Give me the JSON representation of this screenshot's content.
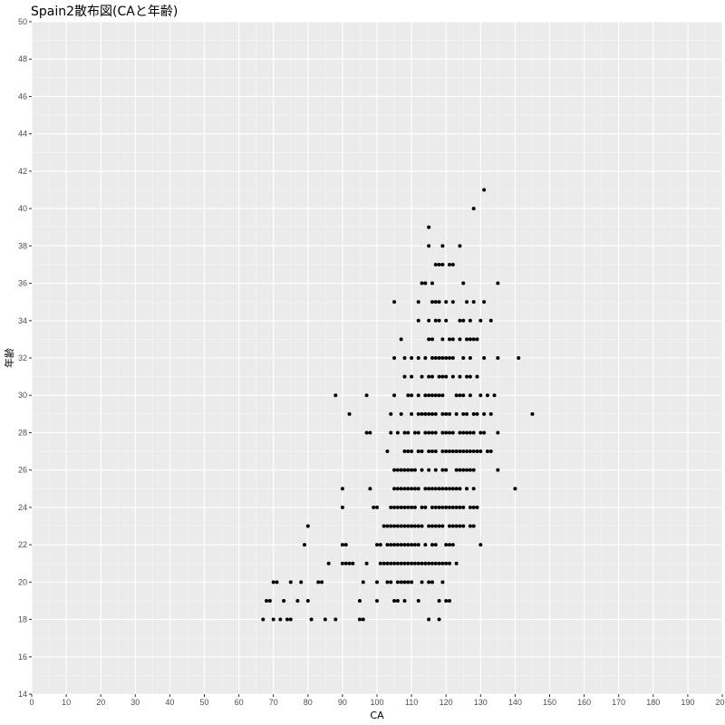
{
  "chart_data": {
    "type": "scatter",
    "title": "Spain2散布図(CAと年齢)",
    "xlabel": "CA",
    "ylabel": "年齢",
    "xlim": [
      0,
      200
    ],
    "ylim": [
      14,
      50
    ],
    "x_ticks": [
      0,
      10,
      20,
      30,
      40,
      50,
      60,
      70,
      80,
      90,
      100,
      110,
      120,
      130,
      140,
      150,
      160,
      170,
      180,
      190,
      200
    ],
    "y_ticks": [
      14,
      16,
      18,
      20,
      22,
      24,
      26,
      28,
      30,
      32,
      34,
      36,
      38,
      40,
      42,
      44,
      46,
      48,
      50
    ],
    "grid": true,
    "legend": "none",
    "colors": {
      "panel": "#ebebeb",
      "grid_major": "#ffffff",
      "point": "#000000"
    },
    "points": [
      [
        67,
        18
      ],
      [
        70,
        18
      ],
      [
        72,
        18
      ],
      [
        74,
        18
      ],
      [
        75,
        18
      ],
      [
        81,
        18
      ],
      [
        85,
        18
      ],
      [
        88,
        18
      ],
      [
        95,
        18
      ],
      [
        96,
        18
      ],
      [
        115,
        18
      ],
      [
        118,
        18
      ],
      [
        68,
        19
      ],
      [
        69,
        19
      ],
      [
        73,
        19
      ],
      [
        77,
        19
      ],
      [
        80,
        19
      ],
      [
        95,
        19
      ],
      [
        100,
        19
      ],
      [
        105,
        19
      ],
      [
        106,
        19
      ],
      [
        108,
        19
      ],
      [
        112,
        19
      ],
      [
        118,
        19
      ],
      [
        120,
        19
      ],
      [
        121,
        19
      ],
      [
        70,
        20
      ],
      [
        71,
        20
      ],
      [
        75,
        20
      ],
      [
        78,
        20
      ],
      [
        83,
        20
      ],
      [
        84,
        20
      ],
      [
        96,
        20
      ],
      [
        100,
        20
      ],
      [
        103,
        20
      ],
      [
        104,
        20
      ],
      [
        106,
        20
      ],
      [
        107,
        20
      ],
      [
        108,
        20
      ],
      [
        109,
        20
      ],
      [
        110,
        20
      ],
      [
        113,
        20
      ],
      [
        115,
        20
      ],
      [
        116,
        20
      ],
      [
        119,
        20
      ],
      [
        86,
        21
      ],
      [
        90,
        21
      ],
      [
        91,
        21
      ],
      [
        92,
        21
      ],
      [
        93,
        21
      ],
      [
        97,
        21
      ],
      [
        101,
        21
      ],
      [
        102,
        21
      ],
      [
        103,
        21
      ],
      [
        104,
        21
      ],
      [
        105,
        21
      ],
      [
        106,
        21
      ],
      [
        107,
        21
      ],
      [
        108,
        21
      ],
      [
        109,
        21
      ],
      [
        110,
        21
      ],
      [
        111,
        21
      ],
      [
        112,
        21
      ],
      [
        113,
        21
      ],
      [
        114,
        21
      ],
      [
        115,
        21
      ],
      [
        116,
        21
      ],
      [
        117,
        21
      ],
      [
        118,
        21
      ],
      [
        119,
        21
      ],
      [
        120,
        21
      ],
      [
        121,
        21
      ],
      [
        123,
        21
      ],
      [
        79,
        22
      ],
      [
        90,
        22
      ],
      [
        91,
        22
      ],
      [
        100,
        22
      ],
      [
        101,
        22
      ],
      [
        103,
        22
      ],
      [
        104,
        22
      ],
      [
        105,
        22
      ],
      [
        106,
        22
      ],
      [
        107,
        22
      ],
      [
        108,
        22
      ],
      [
        109,
        22
      ],
      [
        110,
        22
      ],
      [
        111,
        22
      ],
      [
        112,
        22
      ],
      [
        114,
        22
      ],
      [
        116,
        22
      ],
      [
        117,
        22
      ],
      [
        120,
        22
      ],
      [
        121,
        22
      ],
      [
        122,
        22
      ],
      [
        130,
        22
      ],
      [
        80,
        23
      ],
      [
        102,
        23
      ],
      [
        103,
        23
      ],
      [
        104,
        23
      ],
      [
        105,
        23
      ],
      [
        106,
        23
      ],
      [
        107,
        23
      ],
      [
        108,
        23
      ],
      [
        109,
        23
      ],
      [
        110,
        23
      ],
      [
        111,
        23
      ],
      [
        112,
        23
      ],
      [
        113,
        23
      ],
      [
        115,
        23
      ],
      [
        116,
        23
      ],
      [
        117,
        23
      ],
      [
        118,
        23
      ],
      [
        119,
        23
      ],
      [
        121,
        23
      ],
      [
        122,
        23
      ],
      [
        123,
        23
      ],
      [
        124,
        23
      ],
      [
        125,
        23
      ],
      [
        127,
        23
      ],
      [
        128,
        23
      ],
      [
        90,
        24
      ],
      [
        99,
        24
      ],
      [
        100,
        24
      ],
      [
        104,
        24
      ],
      [
        105,
        24
      ],
      [
        106,
        24
      ],
      [
        107,
        24
      ],
      [
        108,
        24
      ],
      [
        109,
        24
      ],
      [
        110,
        24
      ],
      [
        111,
        24
      ],
      [
        113,
        24
      ],
      [
        114,
        24
      ],
      [
        116,
        24
      ],
      [
        117,
        24
      ],
      [
        118,
        24
      ],
      [
        119,
        24
      ],
      [
        120,
        24
      ],
      [
        121,
        24
      ],
      [
        122,
        24
      ],
      [
        123,
        24
      ],
      [
        124,
        24
      ],
      [
        125,
        24
      ],
      [
        127,
        24
      ],
      [
        128,
        24
      ],
      [
        129,
        24
      ],
      [
        90,
        25
      ],
      [
        98,
        25
      ],
      [
        105,
        25
      ],
      [
        106,
        25
      ],
      [
        107,
        25
      ],
      [
        108,
        25
      ],
      [
        109,
        25
      ],
      [
        110,
        25
      ],
      [
        111,
        25
      ],
      [
        112,
        25
      ],
      [
        114,
        25
      ],
      [
        115,
        25
      ],
      [
        116,
        25
      ],
      [
        117,
        25
      ],
      [
        118,
        25
      ],
      [
        119,
        25
      ],
      [
        120,
        25
      ],
      [
        121,
        25
      ],
      [
        122,
        25
      ],
      [
        123,
        25
      ],
      [
        124,
        25
      ],
      [
        126,
        25
      ],
      [
        128,
        25
      ],
      [
        140,
        25
      ],
      [
        105,
        26
      ],
      [
        106,
        26
      ],
      [
        107,
        26
      ],
      [
        108,
        26
      ],
      [
        109,
        26
      ],
      [
        110,
        26
      ],
      [
        111,
        26
      ],
      [
        113,
        26
      ],
      [
        115,
        26
      ],
      [
        117,
        26
      ],
      [
        119,
        26
      ],
      [
        120,
        26
      ],
      [
        123,
        26
      ],
      [
        124,
        26
      ],
      [
        125,
        26
      ],
      [
        126,
        26
      ],
      [
        127,
        26
      ],
      [
        128,
        26
      ],
      [
        135,
        26
      ],
      [
        103,
        27
      ],
      [
        108,
        27
      ],
      [
        109,
        27
      ],
      [
        110,
        27
      ],
      [
        112,
        27
      ],
      [
        113,
        27
      ],
      [
        115,
        27
      ],
      [
        116,
        27
      ],
      [
        117,
        27
      ],
      [
        119,
        27
      ],
      [
        120,
        27
      ],
      [
        121,
        27
      ],
      [
        122,
        27
      ],
      [
        123,
        27
      ],
      [
        124,
        27
      ],
      [
        125,
        27
      ],
      [
        126,
        27
      ],
      [
        127,
        27
      ],
      [
        128,
        27
      ],
      [
        129,
        27
      ],
      [
        130,
        27
      ],
      [
        132,
        27
      ],
      [
        133,
        27
      ],
      [
        97,
        28
      ],
      [
        98,
        28
      ],
      [
        104,
        28
      ],
      [
        106,
        28
      ],
      [
        108,
        28
      ],
      [
        109,
        28
      ],
      [
        111,
        28
      ],
      [
        112,
        28
      ],
      [
        114,
        28
      ],
      [
        115,
        28
      ],
      [
        116,
        28
      ],
      [
        117,
        28
      ],
      [
        119,
        28
      ],
      [
        120,
        28
      ],
      [
        121,
        28
      ],
      [
        122,
        28
      ],
      [
        124,
        28
      ],
      [
        125,
        28
      ],
      [
        126,
        28
      ],
      [
        127,
        28
      ],
      [
        128,
        28
      ],
      [
        130,
        28
      ],
      [
        131,
        28
      ],
      [
        135,
        28
      ],
      [
        92,
        29
      ],
      [
        104,
        29
      ],
      [
        107,
        29
      ],
      [
        110,
        29
      ],
      [
        112,
        29
      ],
      [
        113,
        29
      ],
      [
        114,
        29
      ],
      [
        115,
        29
      ],
      [
        116,
        29
      ],
      [
        117,
        29
      ],
      [
        119,
        29
      ],
      [
        120,
        29
      ],
      [
        121,
        29
      ],
      [
        123,
        29
      ],
      [
        125,
        29
      ],
      [
        126,
        29
      ],
      [
        128,
        29
      ],
      [
        129,
        29
      ],
      [
        131,
        29
      ],
      [
        133,
        29
      ],
      [
        145,
        29
      ],
      [
        88,
        30
      ],
      [
        97,
        30
      ],
      [
        105,
        30
      ],
      [
        109,
        30
      ],
      [
        110,
        30
      ],
      [
        112,
        30
      ],
      [
        114,
        30
      ],
      [
        115,
        30
      ],
      [
        116,
        30
      ],
      [
        117,
        30
      ],
      [
        118,
        30
      ],
      [
        119,
        30
      ],
      [
        123,
        30
      ],
      [
        124,
        30
      ],
      [
        125,
        30
      ],
      [
        127,
        30
      ],
      [
        130,
        30
      ],
      [
        132,
        30
      ],
      [
        134,
        30
      ],
      [
        108,
        31
      ],
      [
        110,
        31
      ],
      [
        113,
        31
      ],
      [
        115,
        31
      ],
      [
        116,
        31
      ],
      [
        118,
        31
      ],
      [
        119,
        31
      ],
      [
        120,
        31
      ],
      [
        122,
        31
      ],
      [
        124,
        31
      ],
      [
        126,
        31
      ],
      [
        127,
        31
      ],
      [
        129,
        31
      ],
      [
        105,
        32
      ],
      [
        108,
        32
      ],
      [
        110,
        32
      ],
      [
        112,
        32
      ],
      [
        114,
        32
      ],
      [
        116,
        32
      ],
      [
        117,
        32
      ],
      [
        118,
        32
      ],
      [
        119,
        32
      ],
      [
        120,
        32
      ],
      [
        121,
        32
      ],
      [
        122,
        32
      ],
      [
        125,
        32
      ],
      [
        127,
        32
      ],
      [
        131,
        32
      ],
      [
        135,
        32
      ],
      [
        141,
        32
      ],
      [
        107,
        33
      ],
      [
        115,
        33
      ],
      [
        116,
        33
      ],
      [
        119,
        33
      ],
      [
        121,
        33
      ],
      [
        122,
        33
      ],
      [
        124,
        33
      ],
      [
        126,
        33
      ],
      [
        127,
        33
      ],
      [
        128,
        33
      ],
      [
        129,
        33
      ],
      [
        112,
        34
      ],
      [
        115,
        34
      ],
      [
        117,
        34
      ],
      [
        118,
        34
      ],
      [
        120,
        34
      ],
      [
        124,
        34
      ],
      [
        125,
        34
      ],
      [
        127,
        34
      ],
      [
        130,
        34
      ],
      [
        133,
        34
      ],
      [
        105,
        35
      ],
      [
        112,
        35
      ],
      [
        116,
        35
      ],
      [
        117,
        35
      ],
      [
        118,
        35
      ],
      [
        120,
        35
      ],
      [
        122,
        35
      ],
      [
        126,
        35
      ],
      [
        128,
        35
      ],
      [
        131,
        35
      ],
      [
        113,
        36
      ],
      [
        114,
        36
      ],
      [
        116,
        36
      ],
      [
        125,
        36
      ],
      [
        135,
        36
      ],
      [
        117,
        37
      ],
      [
        118,
        37
      ],
      [
        119,
        37
      ],
      [
        121,
        37
      ],
      [
        122,
        37
      ],
      [
        115,
        38
      ],
      [
        119,
        38
      ],
      [
        124,
        38
      ],
      [
        115,
        39
      ],
      [
        128,
        40
      ],
      [
        131,
        41
      ]
    ]
  }
}
